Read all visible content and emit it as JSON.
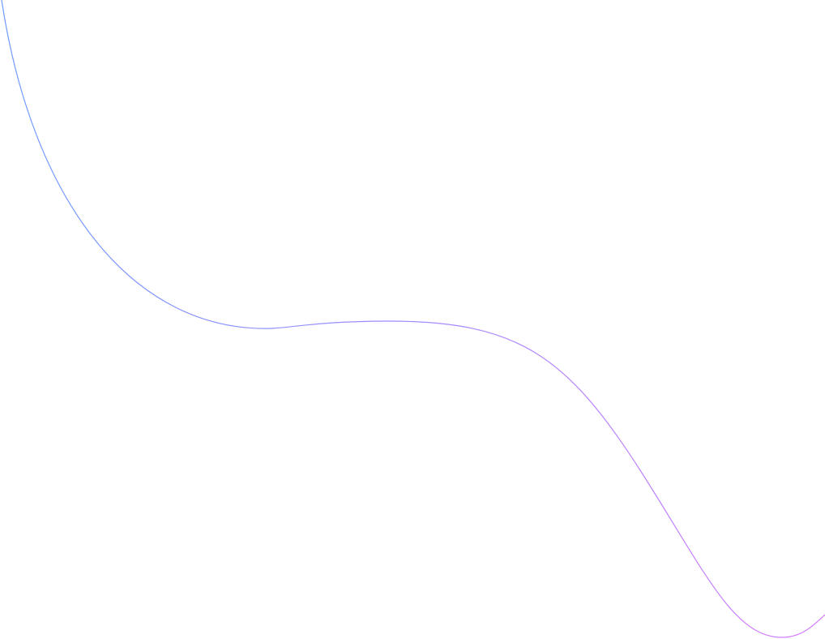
{
  "curve": {
    "color_start": "#6f9bff",
    "color_end": "#d67bff"
  }
}
